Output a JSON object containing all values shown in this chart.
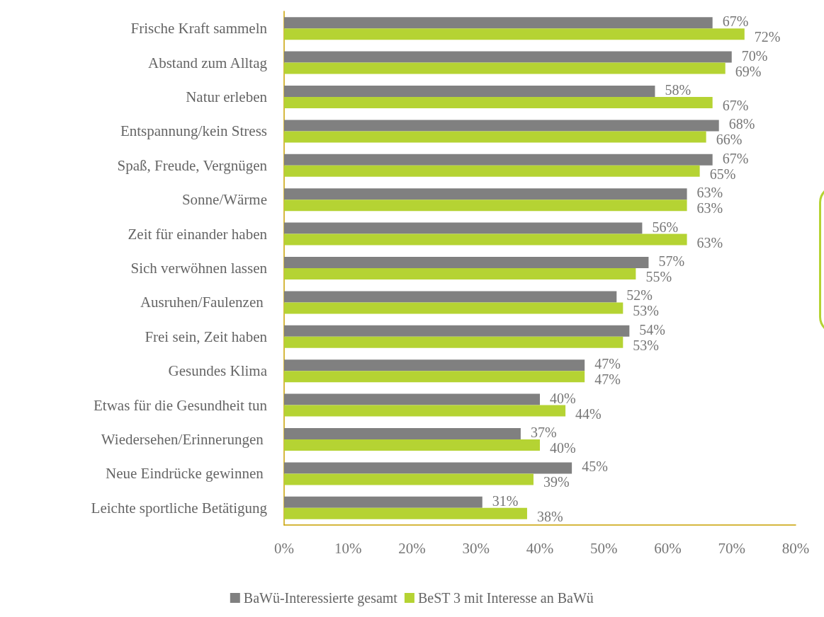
{
  "chart_data": {
    "type": "bar",
    "orientation": "horizontal",
    "categories": [
      "Frische Kraft sammeln",
      "Abstand zum Alltag",
      "Natur erleben",
      "Entspannung/kein Stress",
      "Spaß, Freude, Vergnügen",
      "Sonne/Wärme",
      "Zeit für einander haben",
      "Sich verwöhnen lassen",
      "Ausruhen/Faulenzen ",
      "Frei sein, Zeit haben",
      "Gesundes Klima",
      "Etwas für die Gesundheit tun",
      "Wiedersehen/Erinnerungen ",
      "Neue Eindrücke gewinnen ",
      "Leichte sportliche Betätigung"
    ],
    "series": [
      {
        "name": "BaWü-Interessierte gesamt",
        "color": "#808080",
        "values": [
          67,
          70,
          58,
          68,
          67,
          63,
          56,
          57,
          52,
          54,
          47,
          40,
          37,
          45,
          31
        ],
        "value_labels": [
          "67%",
          "70%",
          "58%",
          "68%",
          "67%",
          "63%",
          "56%",
          "57%",
          "52%",
          "54%",
          "47%",
          "40%",
          "37%",
          "45%",
          "31%"
        ]
      },
      {
        "name": "BeST 3 mit Interesse an BaWü",
        "color": "#b5d333",
        "values": [
          72,
          69,
          67,
          66,
          65,
          63,
          63,
          55,
          53,
          53,
          47,
          44,
          40,
          39,
          38
        ],
        "value_labels": [
          "72%",
          "69%",
          "67%",
          "66%",
          "65%",
          "63%",
          "63%",
          "55%",
          "53%",
          "53%",
          "47%",
          "44%",
          "40%",
          "39%",
          "38%"
        ]
      }
    ],
    "xlim": [
      0,
      80
    ],
    "xticks": [
      {
        "value": 0,
        "label": "0%"
      },
      {
        "value": 10,
        "label": "10%"
      },
      {
        "value": 20,
        "label": "20%"
      },
      {
        "value": 30,
        "label": "30%"
      },
      {
        "value": 40,
        "label": "40%"
      },
      {
        "value": 50,
        "label": "50%"
      },
      {
        "value": 60,
        "label": "60%"
      },
      {
        "value": 70,
        "label": "70%"
      },
      {
        "value": 80,
        "label": "80%"
      }
    ],
    "grid": false,
    "legend": "bottom"
  }
}
